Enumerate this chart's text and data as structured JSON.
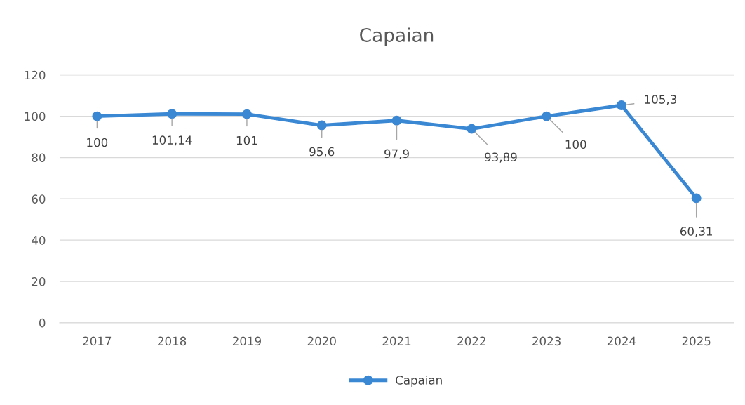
{
  "chart_data": {
    "type": "line",
    "title": "Capaian",
    "categories": [
      "2017",
      "2018",
      "2019",
      "2020",
      "2021",
      "2022",
      "2023",
      "2024",
      "2025"
    ],
    "series": [
      {
        "name": "Capaian",
        "color": "#3a87d4",
        "values": [
          100,
          101.14,
          101,
          95.6,
          97.9,
          93.89,
          100,
          105.3,
          60.31
        ],
        "value_labels": [
          "100",
          "101,14",
          "101",
          "95,6",
          "97,9",
          "93,89",
          "100",
          "105,3",
          "60,31"
        ]
      }
    ],
    "ylim": [
      0,
      120
    ],
    "yticks": [
      0,
      20,
      40,
      60,
      80,
      100,
      120
    ],
    "grid": "y",
    "legend": "bottom",
    "marker": "circle",
    "line_style": "solid"
  }
}
